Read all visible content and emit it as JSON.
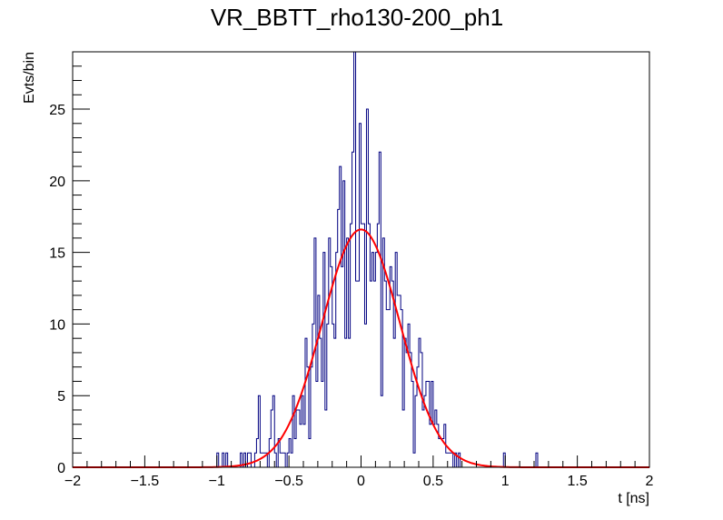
{
  "chart_data": {
    "type": "histogram",
    "title": "VR_BBTT_rho130-200_ph1",
    "xlabel": "t [ns]",
    "ylabel": "Evts/bin",
    "xlim": [
      -2,
      2
    ],
    "ylim": [
      0,
      29
    ],
    "x_ticks": [
      -2,
      -1.5,
      -1,
      -0.5,
      0,
      0.5,
      1,
      1.5,
      2
    ],
    "x_tick_labels": [
      "−2",
      "−1.5",
      "−1",
      "−0.5",
      "0",
      "0.5",
      "1",
      "1.5",
      "2"
    ],
    "y_ticks": [
      0,
      5,
      10,
      15,
      20,
      25
    ],
    "y_tick_labels": [
      "0",
      "5",
      "10",
      "15",
      "20",
      "25"
    ],
    "grid": false,
    "legend": "none",
    "histogram": {
      "bin_width": 0.0125,
      "x_start": -2,
      "color": "#000080",
      "counts": [
        0,
        0,
        0,
        0,
        0,
        0,
        0,
        0,
        0,
        0,
        0,
        0,
        0,
        0,
        0,
        0,
        0,
        0,
        0,
        0,
        0,
        0,
        0,
        0,
        0,
        0,
        0,
        0,
        0,
        0,
        0,
        0,
        0,
        0,
        0,
        0,
        0,
        0,
        0,
        0,
        0,
        0,
        0,
        0,
        0,
        0,
        0,
        0,
        0,
        0,
        0,
        0,
        0,
        0,
        0,
        0,
        0,
        0,
        0,
        0,
        0,
        0,
        0,
        0,
        0,
        0,
        0,
        0,
        0,
        0,
        0,
        0,
        0,
        0,
        0,
        0,
        0,
        0,
        0,
        0,
        1,
        0,
        0,
        1,
        0,
        1,
        0,
        0,
        0,
        0,
        0,
        0,
        0,
        1,
        0,
        1,
        0,
        1,
        1,
        0,
        0,
        1,
        2,
        5,
        1,
        1,
        1,
        1,
        0,
        2,
        4,
        5,
        1,
        0,
        2,
        1,
        1,
        1,
        0,
        1,
        2,
        1,
        5,
        2,
        4,
        4,
        3,
        5,
        3,
        9,
        7,
        2,
        7,
        10,
        16,
        6,
        12,
        9,
        6,
        15,
        4,
        10,
        16,
        14,
        10,
        9,
        15,
        18,
        21,
        14,
        20,
        9,
        16,
        9,
        17,
        22,
        29,
        13,
        13,
        24,
        17,
        17,
        10,
        25,
        17,
        13,
        15,
        13,
        15,
        17,
        22,
        5,
        16,
        13,
        11,
        11,
        14,
        13,
        9,
        15,
        12,
        12,
        11,
        4,
        9,
        8,
        10,
        8,
        6,
        1,
        5,
        7,
        9,
        8,
        4,
        5,
        6,
        6,
        3,
        6,
        3,
        4,
        3,
        2,
        2,
        2,
        3,
        1,
        1,
        1,
        1,
        0,
        1,
        0,
        1,
        0,
        0,
        0,
        0,
        0,
        0,
        0,
        0,
        0,
        0,
        0,
        0,
        0,
        0,
        0,
        0,
        0,
        0,
        0,
        0,
        0,
        0,
        0,
        0,
        1,
        0,
        0,
        0,
        0,
        0,
        0,
        0,
        0,
        0,
        0,
        0,
        0,
        0,
        0,
        0,
        0,
        0,
        1,
        0,
        0,
        0,
        0,
        0,
        0,
        0,
        0,
        0,
        0,
        0,
        0,
        0,
        0,
        0,
        0,
        0,
        0,
        0,
        0,
        0,
        0,
        0,
        0,
        0,
        0,
        0,
        0,
        0,
        0,
        0,
        0,
        0,
        0,
        0,
        0,
        0,
        0,
        0,
        0,
        0,
        0
      ]
    },
    "fit": {
      "type": "gaussian",
      "color": "#ff0000",
      "amplitude": 16.6,
      "mean": 0.0,
      "sigma": 0.27
    }
  }
}
